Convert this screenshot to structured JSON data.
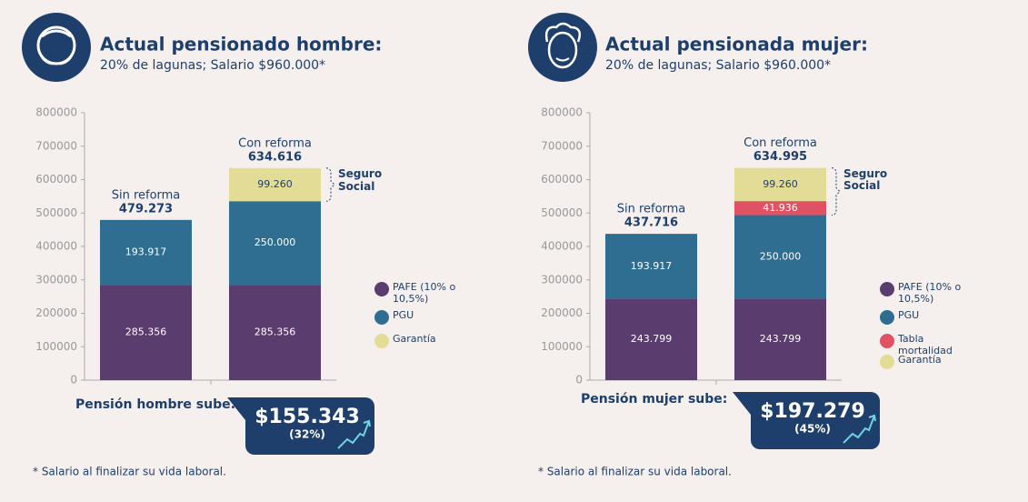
{
  "chart_data": [
    {
      "type": "stacked_bar",
      "title": "Actual pensionado hombre:",
      "subtitle": "20% de lagunas; Salario $960.000*",
      "categories": [
        "Sin reforma",
        "Con reforma"
      ],
      "totals": [
        {
          "value": 479273,
          "label": "479.273"
        },
        {
          "value": 634616,
          "label": "634.616"
        }
      ],
      "series": [
        {
          "name": "PAFE (10% o 10,5%)",
          "color": "#5b3c6e",
          "label_color": "#ffffff",
          "values": [
            285356,
            285356
          ],
          "value_labels": [
            "285.356",
            "285.356"
          ]
        },
        {
          "name": "PGU",
          "color": "#2f6e90",
          "label_color": "#ffffff",
          "values": [
            193917,
            250000
          ],
          "value_labels": [
            "193.917",
            "250.000"
          ]
        },
        {
          "name": "Garantía",
          "color": "#e3dc96",
          "label_color": "#1e3f6b",
          "values": [
            null,
            99260
          ],
          "value_labels": [
            null,
            "99.260"
          ]
        }
      ],
      "bracket_label": "Seguro Social",
      "ylim": [
        0,
        800000
      ],
      "yticks": [
        0,
        100000,
        200000,
        300000,
        400000,
        500000,
        600000,
        700000,
        800000
      ],
      "increase_text": "Pensión hombre sube:",
      "increase": {
        "value": 155343,
        "label": "$155.343"
      },
      "increase_pct": {
        "value": 32,
        "label": "(32%)"
      },
      "footnote": "* Salario al finalizar su vida laboral."
    },
    {
      "type": "stacked_bar",
      "title": "Actual pensionada mujer:",
      "subtitle": "20% de lagunas; Salario $960.000*",
      "categories": [
        "Sin reforma",
        "Con reforma"
      ],
      "totals": [
        {
          "value": 437716,
          "label": "437.716"
        },
        {
          "value": 634995,
          "label": "634.995"
        }
      ],
      "series": [
        {
          "name": "PAFE (10% o 10,5%)",
          "color": "#5b3c6e",
          "label_color": "#ffffff",
          "values": [
            243799,
            243799
          ],
          "value_labels": [
            "243.799",
            "243.799"
          ]
        },
        {
          "name": "PGU",
          "color": "#2f6e90",
          "label_color": "#ffffff",
          "values": [
            193917,
            250000
          ],
          "value_labels": [
            "193.917",
            "250.000"
          ]
        },
        {
          "name": "Tabla mortalidad",
          "color": "#e05263",
          "label_color": "#ffffff",
          "values": [
            null,
            41936
          ],
          "value_labels": [
            null,
            "41.936"
          ]
        },
        {
          "name": "Garantía",
          "color": "#e3dc96",
          "label_color": "#1e3f6b",
          "values": [
            null,
            99260
          ],
          "value_labels": [
            null,
            "99.260"
          ]
        }
      ],
      "bracket_label": "Seguro Social",
      "ylim": [
        0,
        800000
      ],
      "yticks": [
        0,
        100000,
        200000,
        300000,
        400000,
        500000,
        600000,
        700000,
        800000
      ],
      "increase_text": "Pensión mujer sube:",
      "increase": {
        "value": 197279,
        "label": "$197.279"
      },
      "increase_pct": {
        "value": 45,
        "label": "(45%)"
      },
      "footnote": "* Salario al finalizar su vida laboral."
    }
  ]
}
